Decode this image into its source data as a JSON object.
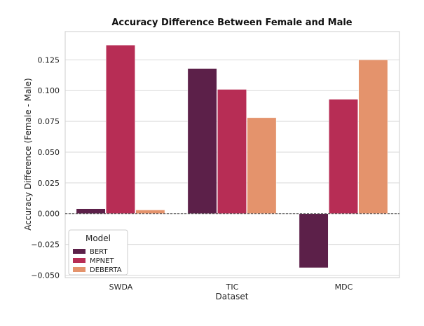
{
  "chart_data": {
    "type": "bar",
    "title": "Accuracy Difference Between Female and Male",
    "xlabel": "Dataset",
    "ylabel": "Accuracy Difference (Female - Male)",
    "categories": [
      "SWDA",
      "TIC",
      "MDC"
    ],
    "series": [
      {
        "name": "BERT",
        "color": "#5c2049",
        "values": [
          0.004,
          0.118,
          -0.044
        ]
      },
      {
        "name": "MPNET",
        "color": "#b72d55",
        "values": [
          0.137,
          0.101,
          0.093
        ]
      },
      {
        "name": "DEBERTA",
        "color": "#e4936c",
        "values": [
          0.003,
          0.078,
          0.125
        ]
      }
    ],
    "ylim": [
      -0.052,
      0.148
    ],
    "yticks": [
      -0.05,
      -0.025,
      0.0,
      0.025,
      0.05,
      0.075,
      0.1,
      0.125
    ],
    "ytick_labels": [
      "−0.050",
      "−0.025",
      "0.000",
      "0.025",
      "0.050",
      "0.075",
      "0.100",
      "0.125"
    ],
    "grid": true,
    "zero_line": true,
    "legend": {
      "title": "Model",
      "placement": "bottom-left"
    }
  }
}
